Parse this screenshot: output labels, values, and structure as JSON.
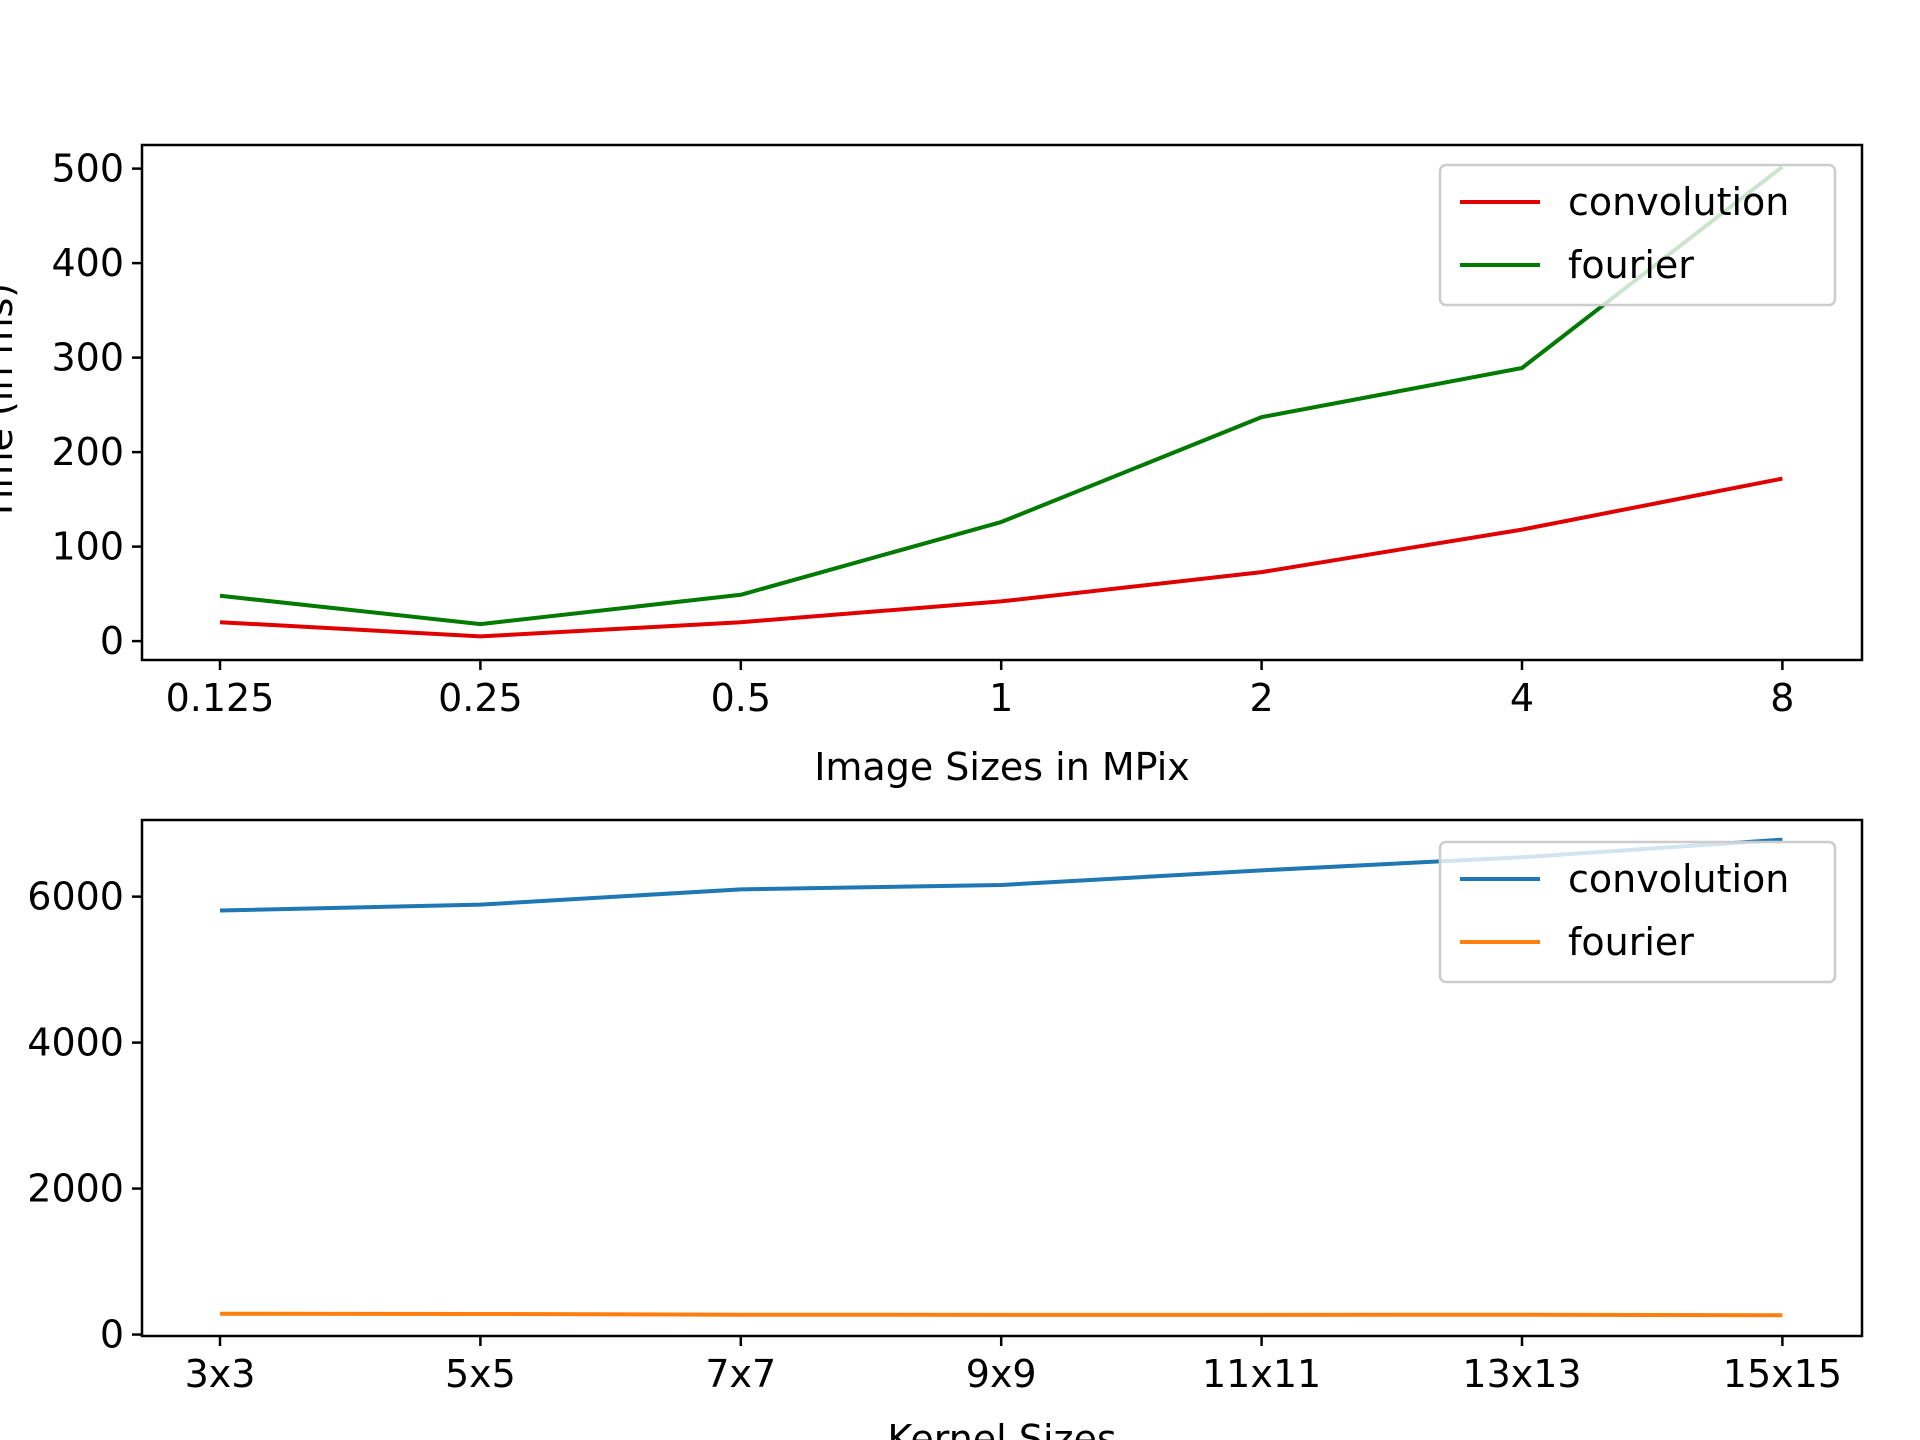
{
  "chart_data": [
    {
      "type": "line",
      "title": "",
      "xlabel": "Image Sizes in MPix",
      "ylabel": "Time (in ms)",
      "categories": [
        "0.125",
        "0.25",
        "0.5",
        "1",
        "2",
        "4",
        "8"
      ],
      "yticks": [
        "0",
        "100",
        "200",
        "300",
        "400",
        "500"
      ],
      "ylim": [
        -20,
        525
      ],
      "grid": false,
      "legend": "top-right",
      "series": [
        {
          "name": "convolution",
          "color": "#e00000",
          "values": [
            20,
            5,
            20,
            42,
            73,
            118,
            172
          ]
        },
        {
          "name": "fourier",
          "color": "#007a00",
          "values": [
            48,
            18,
            49,
            126,
            237,
            289,
            502
          ]
        }
      ]
    },
    {
      "type": "line",
      "title": "",
      "xlabel": "Kernel Sizes",
      "ylabel": "",
      "categories": [
        "3x3",
        "5x5",
        "7x7",
        "9x9",
        "11x11",
        "13x13",
        "15x15"
      ],
      "yticks": [
        "0",
        "2000",
        "4000",
        "6000"
      ],
      "ylim": [
        -20,
        7050
      ],
      "grid": false,
      "legend": "top-right",
      "series": [
        {
          "name": "convolution",
          "color": "#1f77b4",
          "values": [
            5810,
            5890,
            6100,
            6160,
            6360,
            6540,
            6780
          ]
        },
        {
          "name": "fourier",
          "color": "#ff7f0e",
          "values": [
            285,
            282,
            272,
            270,
            270,
            272,
            265
          ]
        }
      ]
    }
  ]
}
